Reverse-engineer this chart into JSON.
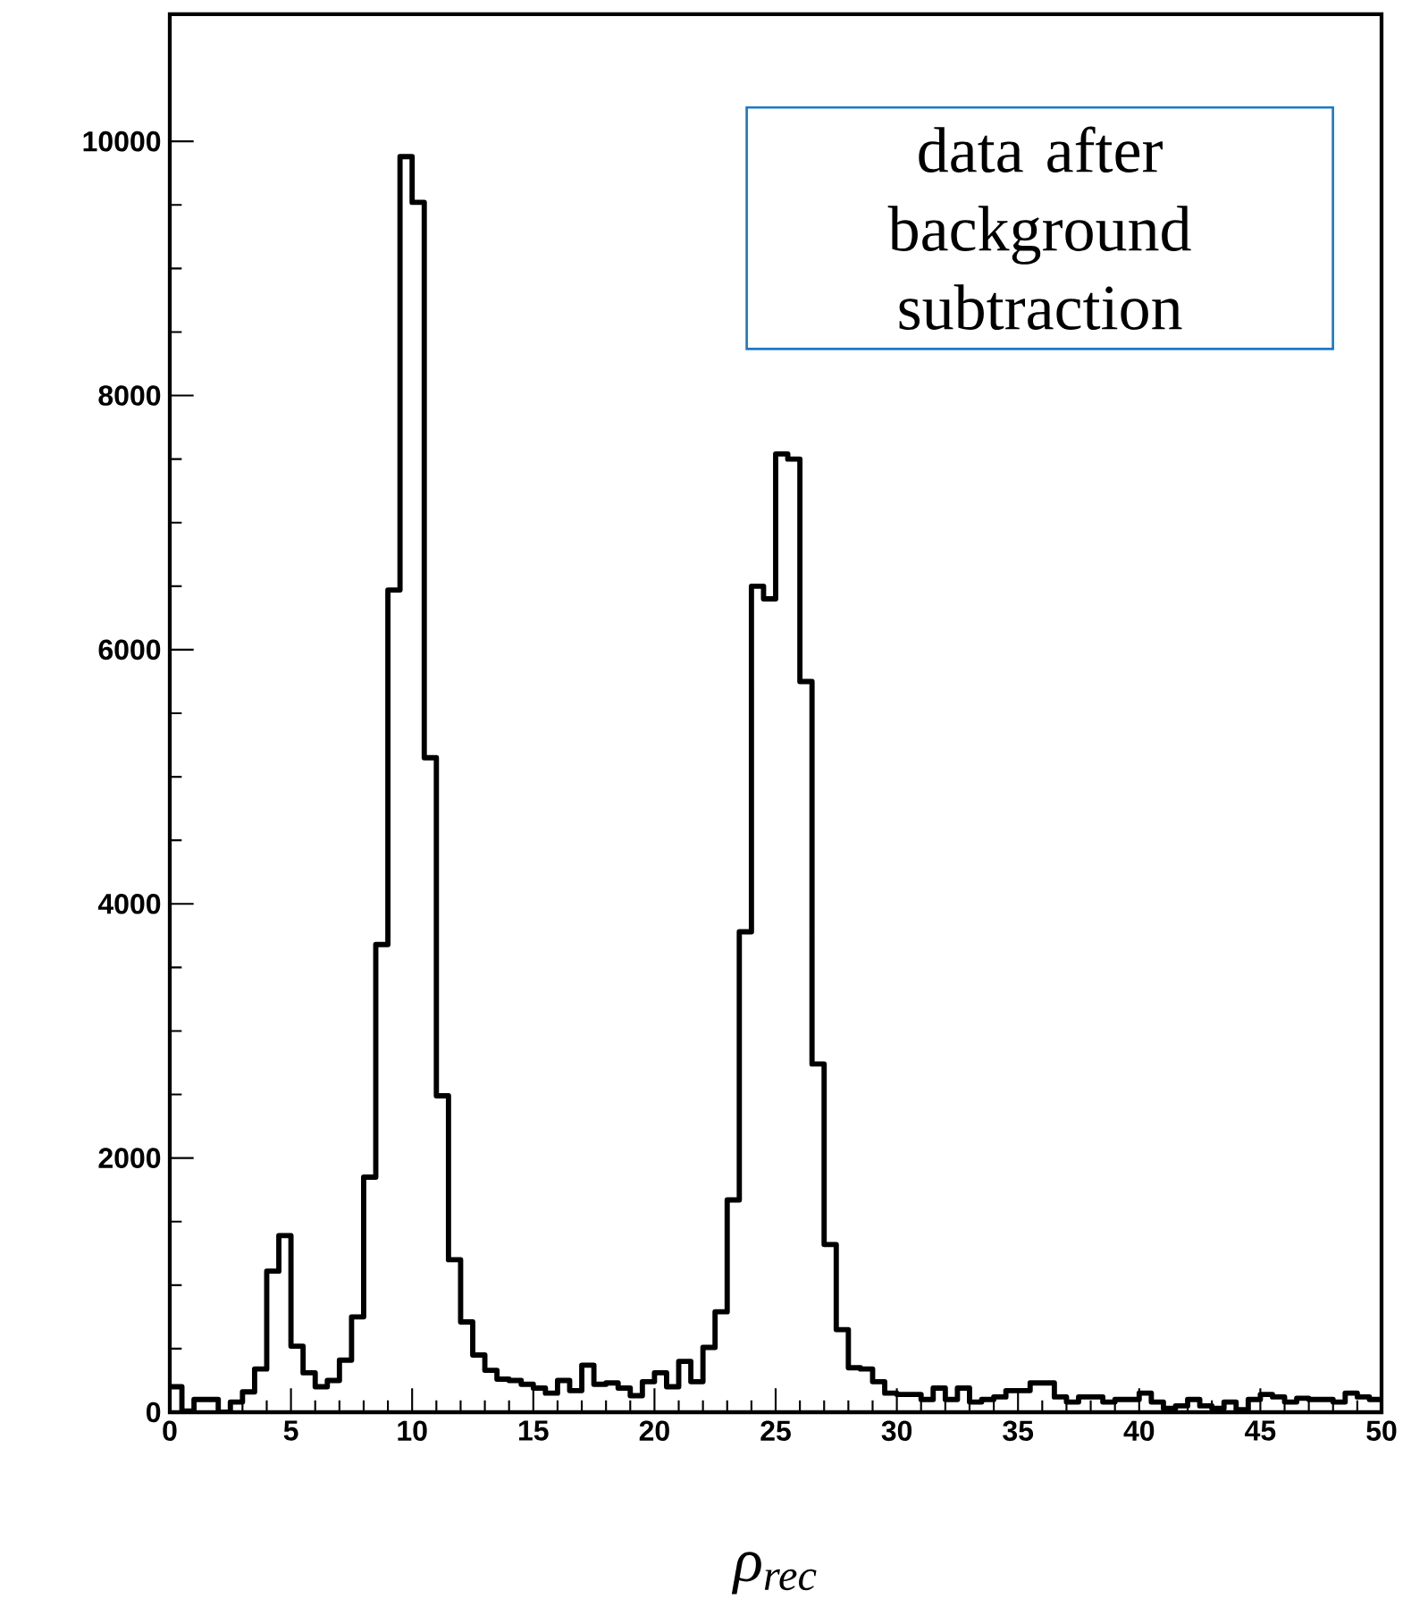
{
  "chart_data": {
    "type": "histogram",
    "bins": [
      0,
      0.5,
      1,
      1.5,
      2,
      2.5,
      3,
      3.5,
      4,
      4.5,
      5,
      5.5,
      6,
      6.5,
      7,
      7.5,
      8,
      8.5,
      9,
      9.5,
      10,
      10.5,
      11,
      11.5,
      12,
      12.5,
      13,
      13.5,
      14,
      14.5,
      15,
      15.5,
      16,
      16.5,
      17,
      17.5,
      18,
      18.5,
      19,
      19.5,
      20,
      20.5,
      21,
      21.5,
      22,
      22.5,
      23,
      23.5,
      24,
      24.5,
      25,
      25.5,
      26,
      26.5,
      27,
      27.5,
      28,
      28.5,
      29,
      29.5,
      30,
      30.5,
      31,
      31.5,
      32,
      32.5,
      33,
      33.5,
      34,
      34.5,
      35,
      35.5,
      36,
      36.5,
      37,
      37.5,
      38,
      38.5,
      39,
      39.5,
      40,
      40.5,
      41,
      41.5,
      42,
      42.5,
      43,
      43.5,
      44,
      44.5,
      45,
      45.5,
      46,
      46.5,
      47,
      47.5,
      48,
      48.5,
      49,
      49.5,
      50
    ],
    "values": [
      200,
      10,
      100,
      100,
      0,
      80,
      160,
      340,
      1110,
      1390,
      520,
      310,
      200,
      250,
      410,
      750,
      1850,
      3680,
      6470,
      9880,
      9520,
      5150,
      2490,
      1200,
      710,
      450,
      330,
      260,
      250,
      220,
      190,
      150,
      250,
      170,
      370,
      220,
      230,
      190,
      130,
      240,
      310,
      200,
      400,
      240,
      510,
      790,
      1670,
      3780,
      6500,
      6400,
      7540,
      7500,
      5750,
      2740,
      1320,
      650,
      350,
      340,
      240,
      150,
      140,
      140,
      100,
      190,
      100,
      190,
      80,
      100,
      120,
      170,
      170,
      230,
      230,
      120,
      80,
      120,
      120,
      80,
      100,
      100,
      150,
      80,
      30,
      50,
      100,
      50,
      30,
      80,
      20,
      100,
      140,
      120,
      80,
      110,
      100,
      100,
      80,
      150,
      120,
      100
    ],
    "color": "#000000",
    "xlabel": "ρ$_{rec}$",
    "annotations": [
      "data after background subtraction"
    ],
    "xlim": [
      0,
      50
    ],
    "ylim": [
      0,
      11000
    ],
    "xticks": [
      0,
      5,
      10,
      15,
      20,
      25,
      30,
      35,
      40,
      45,
      50
    ],
    "yticks": [
      0,
      2000,
      4000,
      6000,
      8000,
      10000
    ]
  }
}
